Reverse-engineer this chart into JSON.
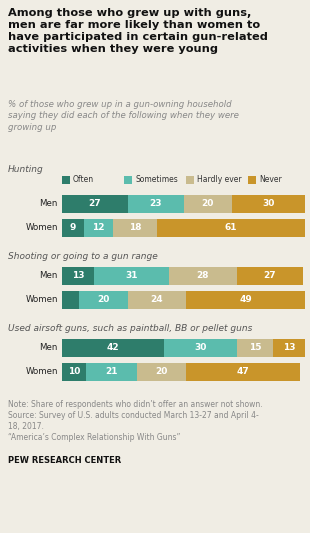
{
  "title": "Among those who grew up with guns,\nmen are far more likely than women to\nhave participated in certain gun-related\nactivities when they were young",
  "subtitle": "% of those who grew up in a gun-owning household\nsaying they did each of the following when they were\ngrowing up",
  "legend_labels": [
    "Often",
    "Sometimes",
    "Hardly ever",
    "Never"
  ],
  "colors": [
    "#2e7d6b",
    "#5bbcad",
    "#c9bb8e",
    "#c9952a"
  ],
  "data": {
    "Hunting": {
      "Men": [
        27,
        23,
        20,
        30
      ],
      "Women": [
        9,
        12,
        18,
        61
      ]
    },
    "Shooting or going to a gun range": {
      "Men": [
        13,
        31,
        28,
        27
      ],
      "Women": [
        7,
        20,
        24,
        49
      ]
    },
    "Used airsoft guns, such as paintball, BB or pellet guns": {
      "Men": [
        42,
        30,
        15,
        13
      ],
      "Women": [
        10,
        21,
        20,
        47
      ]
    }
  },
  "sections": [
    "Hunting",
    "Shooting or going to a gun range",
    "Used airsoft guns, such as paintball, BB or pellet guns"
  ],
  "note_lines": [
    "Note: Share of respondents who didn’t offer an answer not shown.",
    "Source: Survey of U.S. adults conducted March 13-27 and April 4-",
    "18, 2017.",
    "“America’s Complex Relationship With Guns”"
  ],
  "source": "PEW RESEARCH CENTER",
  "background_color": "#f0ede4",
  "title_color": "#111111",
  "subtitle_color": "#888888",
  "category_color": "#555555",
  "note_color": "#888888",
  "min_label_pct": 8
}
